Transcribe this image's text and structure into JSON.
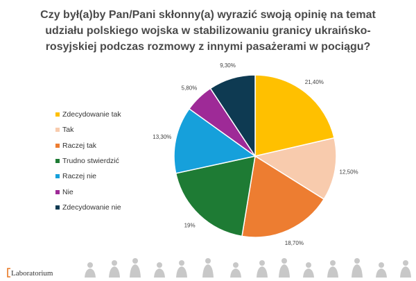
{
  "title": {
    "lines": [
      "Czy był(a)by Pan/Pani skłonny(a) wyrazić swoją opinię na temat",
      "udziału polskiego wojska w stabilizowaniu granicy ukraińsko-",
      "rosyjskiej podczas rozmowy z innymi pasażerami w pociągu?"
    ]
  },
  "chart_data": {
    "type": "pie",
    "title": "Czy był(a)by Pan/Pani skłonny(a) wyrazić swoją opinię na temat udziału polskiego wojska w stabilizowaniu granicy ukraińsko-rosyjskiej podczas rozmowy z innymi pasażerami w pociągu?",
    "legend_position": "left",
    "slices": [
      {
        "label": "Zdecydowanie tak",
        "value": 21.4,
        "display": "21,40%",
        "color": "#ffc000"
      },
      {
        "label": "Tak",
        "value": 12.5,
        "display": "12,50%",
        "color": "#f8cbad"
      },
      {
        "label": "Raczej tak",
        "value": 18.7,
        "display": "18,70%",
        "color": "#ed7d31"
      },
      {
        "label": "Trudno stwierdzić",
        "value": 19.0,
        "display": "19%",
        "color": "#1e7b34"
      },
      {
        "label": "Raczej nie",
        "value": 13.3,
        "display": "13,30%",
        "color": "#16a0db"
      },
      {
        "label": "Nie",
        "value": 5.8,
        "display": "5,80%",
        "color": "#9e2a97"
      },
      {
        "label": "Zdecydowanie nie",
        "value": 9.3,
        "display": "9,30%",
        "color": "#0e3a52"
      }
    ]
  },
  "footer": {
    "logo_text": "Laboratorium",
    "silhouette_color": "#c8c8c8"
  }
}
